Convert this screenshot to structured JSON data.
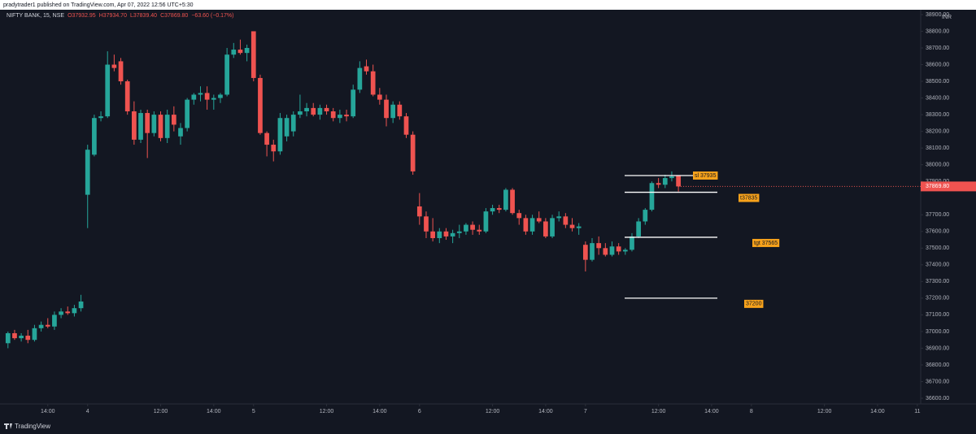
{
  "header": {
    "publisher": "pradytrader1 published on TradingView.com, Apr 07, 2022 12:56 UTC+5:30"
  },
  "footer": {
    "brand": "TradingView"
  },
  "chart_data": {
    "type": "candlestick",
    "legend": {
      "symbol": "NIFTY BANK, 15, NSE",
      "open": "O37932.95",
      "high": "H37934.70",
      "low": "L37839.40",
      "close": "C37869.80",
      "change": "−63.60 (−0.17%)"
    },
    "currency": "INR",
    "up_color": "#26a69a",
    "down_color": "#ef5350",
    "x": [
      -12,
      -11,
      -10,
      -9,
      -8,
      -7,
      -6,
      -5,
      -4,
      -3,
      -2,
      -1,
      0,
      1,
      2,
      3,
      4,
      5,
      6,
      7,
      8,
      9,
      10,
      11,
      12,
      13,
      14,
      15,
      16,
      17,
      18,
      19,
      20,
      21,
      22,
      23,
      24,
      25,
      26,
      27,
      28,
      29,
      30,
      31,
      32,
      33,
      34,
      35,
      36,
      37,
      38,
      39,
      40,
      41,
      42,
      43,
      44,
      45,
      46,
      47,
      48,
      49,
      50,
      51,
      52,
      53,
      54,
      55,
      56,
      57,
      58,
      59,
      60,
      61,
      62,
      63,
      64,
      65,
      66,
      67,
      68,
      69,
      70,
      71,
      72,
      73,
      74,
      75,
      76,
      77,
      78,
      79,
      80,
      81,
      82,
      83,
      84,
      85,
      86,
      87,
      88,
      89
    ],
    "open": [
      36930,
      36990,
      36960,
      36975,
      36950,
      37020,
      37040,
      37030,
      37100,
      37120,
      37110,
      37140,
      37820,
      38060,
      38280,
      38290,
      38600,
      38620,
      38500,
      38320,
      38150,
      38310,
      38190,
      38300,
      38160,
      38300,
      38170,
      38220,
      38390,
      38420,
      38430,
      38390,
      38400,
      38420,
      38660,
      38690,
      38670,
      38800,
      38520,
      38190,
      38120,
      38080,
      38170,
      38200,
      38300,
      38320,
      38340,
      38300,
      38340,
      38320,
      38280,
      38300,
      38290,
      38450,
      38590,
      38560,
      38420,
      38390,
      38280,
      38360,
      38290,
      38180,
      37750,
      37690,
      37600,
      37560,
      37600,
      37570,
      37590,
      37600,
      37640,
      37610,
      37600,
      37720,
      37740,
      37730,
      37850,
      37710,
      37680,
      37600,
      37680,
      37660,
      37570,
      37680,
      37690,
      37640,
      37620,
      37520,
      37430,
      37530,
      37500,
      37460,
      37510,
      37480,
      37490,
      37570,
      37660,
      37730,
      37890,
      37880,
      37920,
      37932.95
    ],
    "high": [
      37000,
      37010,
      36990,
      37010,
      37040,
      37060,
      37080,
      37120,
      37140,
      37150,
      37160,
      37220,
      38120,
      38300,
      38320,
      38680,
      38660,
      38640,
      38510,
      38380,
      38330,
      38330,
      38320,
      38320,
      38330,
      38350,
      38250,
      38400,
      38430,
      38470,
      38470,
      38420,
      38430,
      38700,
      38730,
      38750,
      38720,
      38800,
      38540,
      38200,
      38150,
      38310,
      38300,
      38320,
      38420,
      38370,
      38370,
      38360,
      38360,
      38340,
      38330,
      38330,
      38480,
      38620,
      38630,
      38600,
      38460,
      38420,
      38380,
      38380,
      38310,
      38200,
      37830,
      37720,
      37680,
      37620,
      37620,
      37610,
      37640,
      37650,
      37660,
      37640,
      37740,
      37760,
      37760,
      37860,
      37860,
      37730,
      37700,
      37700,
      37720,
      37680,
      37700,
      37720,
      37710,
      37680,
      37650,
      37540,
      37560,
      37570,
      37530,
      37540,
      37530,
      37500,
      37590,
      37680,
      37740,
      37900,
      37920,
      37940,
      37960,
      37934.7
    ],
    "low": [
      36900,
      36950,
      36940,
      36930,
      36940,
      37000,
      37020,
      37010,
      37080,
      37100,
      37090,
      37120,
      37620,
      38050,
      38260,
      38280,
      38560,
      38480,
      38300,
      38120,
      38130,
      38040,
      38170,
      38140,
      38130,
      38200,
      38120,
      38200,
      38360,
      38380,
      38330,
      38330,
      38370,
      38410,
      38640,
      38660,
      38620,
      38500,
      38180,
      38050,
      38020,
      38060,
      38140,
      38170,
      38280,
      38290,
      38290,
      38270,
      38300,
      38260,
      38250,
      38260,
      38280,
      38430,
      38540,
      38410,
      38360,
      38230,
      38250,
      38270,
      38160,
      37940,
      37640,
      37560,
      37540,
      37530,
      37550,
      37530,
      37560,
      37580,
      37580,
      37580,
      37590,
      37700,
      37710,
      37720,
      37700,
      37640,
      37580,
      37580,
      37650,
      37560,
      37560,
      37660,
      37620,
      37600,
      37580,
      37360,
      37420,
      37460,
      37450,
      37450,
      37460,
      37460,
      37480,
      37560,
      37640,
      37720,
      37860,
      37860,
      37900,
      37839.4
    ],
    "close": [
      36990,
      36960,
      36975,
      36950,
      37020,
      37040,
      37030,
      37100,
      37120,
      37110,
      37140,
      37180,
      38090,
      38280,
      38290,
      38600,
      38580,
      38500,
      38320,
      38150,
      38310,
      38190,
      38300,
      38160,
      38300,
      38240,
      38220,
      38390,
      38420,
      38430,
      38390,
      38400,
      38420,
      38660,
      38690,
      38670,
      38700,
      38520,
      38190,
      38120,
      38080,
      38280,
      38280,
      38300,
      38320,
      38340,
      38300,
      38340,
      38320,
      38280,
      38300,
      38290,
      38450,
      38580,
      38560,
      38420,
      38390,
      38280,
      38360,
      38290,
      38180,
      37960,
      37690,
      37600,
      37560,
      37600,
      37570,
      37590,
      37600,
      37640,
      37610,
      37600,
      37720,
      37740,
      37730,
      37850,
      37710,
      37680,
      37600,
      37680,
      37660,
      37570,
      37680,
      37690,
      37640,
      37620,
      37630,
      37430,
      37530,
      37500,
      37460,
      37510,
      37480,
      37490,
      37570,
      37660,
      37730,
      37890,
      37880,
      37920,
      37930,
      37869.8
    ],
    "last_price": {
      "value": 37869.8,
      "label": "37869.80"
    },
    "levels": [
      {
        "value": 37935,
        "label": "sl 37935"
      },
      {
        "value": 37835,
        "label": "t37835"
      },
      {
        "value": 37565,
        "label": "tgt 37565"
      },
      {
        "value": 37200,
        "label": "37200"
      }
    ],
    "xlim": [
      -13.2,
      125.5
    ],
    "xticks": [
      {
        "value": -6,
        "label": "14:00"
      },
      {
        "value": 0,
        "label": "4"
      },
      {
        "value": 11,
        "label": "12:00"
      },
      {
        "value": 19,
        "label": "14:00"
      },
      {
        "value": 25,
        "label": "5"
      },
      {
        "value": 36,
        "label": "12:00"
      },
      {
        "value": 44,
        "label": "14:00"
      },
      {
        "value": 50,
        "label": "6"
      },
      {
        "value": 61,
        "label": "12:00"
      },
      {
        "value": 69,
        "label": "14:00"
      },
      {
        "value": 75,
        "label": "7"
      },
      {
        "value": 86,
        "label": "12:00"
      },
      {
        "value": 94,
        "label": "14:00"
      },
      {
        "value": 100,
        "label": "8"
      },
      {
        "value": 111,
        "label": "12:00"
      },
      {
        "value": 119,
        "label": "14:00"
      },
      {
        "value": 125,
        "label": "11"
      }
    ],
    "ylim": [
      36566,
      38929
    ],
    "yticks": [
      {
        "value": 36600,
        "label": "36600.00"
      },
      {
        "value": 36700,
        "label": "36700.00"
      },
      {
        "value": 36800,
        "label": "36800.00"
      },
      {
        "value": 36900,
        "label": "36900.00"
      },
      {
        "value": 37000,
        "label": "37000.00"
      },
      {
        "value": 37100,
        "label": "37100.00"
      },
      {
        "value": 37200,
        "label": "37200.00"
      },
      {
        "value": 37300,
        "label": "37300.00"
      },
      {
        "value": 37400,
        "label": "37400.00"
      },
      {
        "value": 37500,
        "label": "37500.00"
      },
      {
        "value": 37600,
        "label": "37600.00"
      },
      {
        "value": 37700,
        "label": "37700.00"
      },
      {
        "value": 37900,
        "label": "37900.00"
      },
      {
        "value": 38000,
        "label": "38000.00"
      },
      {
        "value": 38100,
        "label": "38100.00"
      },
      {
        "value": 38200,
        "label": "38200.00"
      },
      {
        "value": 38300,
        "label": "38300.00"
      },
      {
        "value": 38400,
        "label": "38400.00"
      },
      {
        "value": 38500,
        "label": "38500.00"
      },
      {
        "value": 38600,
        "label": "38600.00"
      },
      {
        "value": 38700,
        "label": "38700.00"
      },
      {
        "value": 38800,
        "label": "38800.00"
      },
      {
        "value": 38900,
        "label": "38900.00"
      }
    ]
  }
}
